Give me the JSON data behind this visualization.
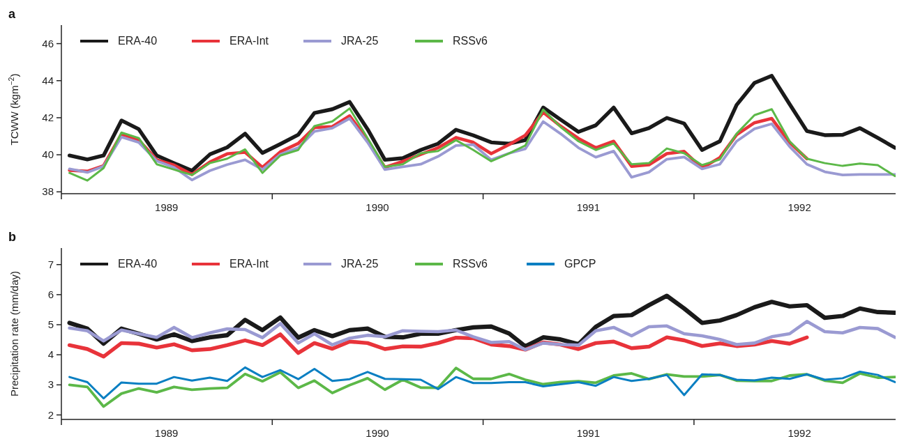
{
  "chart_data": [
    {
      "type": "line",
      "title": "a",
      "ylabel": "TCWW (kgm$^{−2}$)",
      "legend": "top left",
      "line_style": "solid",
      "marker": "none",
      "x": [
        "1989-01-15",
        "1989-02-15",
        "1989-03-15",
        "1989-04-15",
        "1989-05-15",
        "1989-06-15",
        "1989-07-15",
        "1989-08-15",
        "1989-09-15",
        "1989-10-15",
        "1989-11-15",
        "1989-12-15",
        "1990-01-15",
        "1990-02-15",
        "1990-03-15",
        "1990-04-15",
        "1990-05-15",
        "1990-06-15",
        "1990-07-15",
        "1990-08-15",
        "1990-09-15",
        "1990-10-15",
        "1990-11-15",
        "1990-12-15",
        "1991-01-15",
        "1991-02-15",
        "1991-03-15",
        "1991-04-15",
        "1991-05-15",
        "1991-06-15",
        "1991-07-15",
        "1991-08-15",
        "1991-09-15",
        "1991-10-15",
        "1991-11-15",
        "1991-12-15",
        "1992-01-15",
        "1992-02-15",
        "1992-03-15",
        "1992-04-15",
        "1992-05-15",
        "1992-06-15",
        "1992-07-15",
        "1992-08-15",
        "1992-09-15",
        "1992-10-15",
        "1992-11-15",
        "1992-12-15"
      ],
      "xlim": [
        "1989-01-01",
        "1992-12-16"
      ],
      "xticks": [
        {
          "value": "1989-01-01",
          "label": null
        },
        {
          "value": "1989-07-02",
          "label": "1989"
        },
        {
          "value": "1990-01-01",
          "label": null
        },
        {
          "value": "1990-07-02",
          "label": "1990"
        },
        {
          "value": "1991-01-01",
          "label": null
        },
        {
          "value": "1991-07-02",
          "label": "1991"
        },
        {
          "value": "1992-01-01",
          "label": null
        },
        {
          "value": "1992-07-02",
          "label": "1992"
        }
      ],
      "ylim": [
        37.9,
        47
      ],
      "yticks": [
        38,
        40,
        42,
        44,
        46
      ],
      "series": [
        {
          "name": "ERA-40",
          "color": "#1a1a1a",
          "values": [
            39.96,
            39.75,
            39.96,
            41.85,
            41.38,
            39.96,
            39.55,
            39.14,
            40.02,
            40.4,
            41.14,
            40.1,
            40.58,
            41.08,
            42.26,
            42.46,
            42.85,
            41.38,
            39.73,
            39.82,
            40.26,
            40.6,
            41.35,
            41.05,
            40.67,
            40.6,
            40.79,
            42.55,
            41.9,
            41.24,
            41.59,
            42.55,
            41.16,
            41.44,
            41.99,
            41.69,
            40.26,
            40.73,
            42.69,
            43.88,
            44.26,
            42.73,
            41.28,
            41.06,
            41.08,
            41.44,
            40.91,
            40.38
          ]
        },
        {
          "name": "ERA-Int",
          "color": "#e8333a",
          "values": [
            39.16,
            39.11,
            39.41,
            41.12,
            40.79,
            39.73,
            39.44,
            38.94,
            39.61,
            40.05,
            40.14,
            39.32,
            40.16,
            40.61,
            41.47,
            41.52,
            42.1,
            40.79,
            39.32,
            39.64,
            40.02,
            40.38,
            40.93,
            40.67,
            40.06,
            40.55,
            41.05,
            42.29,
            41.55,
            40.88,
            40.38,
            40.73,
            39.38,
            39.46,
            40.06,
            40.18,
            39.28,
            39.85,
            41.08,
            41.73,
            41.96,
            40.67,
            39.79,
            null,
            null,
            null,
            null,
            null
          ]
        },
        {
          "name": "JRA-25",
          "color": "#9a9ad2",
          "values": [
            39.24,
            39.05,
            39.38,
            40.96,
            40.67,
            39.67,
            39.32,
            38.64,
            39.14,
            39.47,
            39.73,
            39.2,
            40.02,
            40.38,
            41.26,
            41.44,
            41.96,
            40.67,
            39.2,
            39.35,
            39.49,
            39.91,
            40.5,
            40.55,
            39.73,
            40.08,
            40.32,
            41.79,
            41.14,
            40.38,
            39.87,
            40.2,
            38.79,
            39.06,
            39.76,
            39.88,
            39.24,
            39.49,
            40.73,
            41.4,
            41.67,
            40.44,
            39.49,
            39.08,
            38.91,
            38.94,
            38.94,
            38.94
          ]
        },
        {
          "name": "RSSv6",
          "color": "#5cb848",
          "values": [
            39.02,
            38.61,
            39.28,
            41.2,
            40.9,
            39.49,
            39.2,
            38.91,
            39.55,
            39.79,
            40.29,
            39.02,
            39.96,
            40.26,
            41.55,
            41.8,
            42.5,
            40.9,
            39.35,
            39.49,
            40.08,
            40.2,
            40.79,
            40.26,
            39.65,
            40.08,
            40.5,
            42.44,
            41.5,
            40.73,
            40.26,
            40.61,
            39.49,
            39.55,
            40.34,
            40.08,
            39.44,
            39.75,
            41.14,
            42.14,
            42.46,
            40.73,
            39.79,
            39.55,
            39.4,
            39.53,
            39.44,
            38.85
          ]
        }
      ]
    },
    {
      "type": "line",
      "title": "b",
      "ylabel": "Precipitation rate (mm/day)",
      "legend": "top left",
      "line_style": "solid",
      "marker": "none",
      "x": [
        "1989-01-15",
        "1989-02-15",
        "1989-03-15",
        "1989-04-15",
        "1989-05-15",
        "1989-06-15",
        "1989-07-15",
        "1989-08-15",
        "1989-09-15",
        "1989-10-15",
        "1989-11-15",
        "1989-12-15",
        "1990-01-15",
        "1990-02-15",
        "1990-03-15",
        "1990-04-15",
        "1990-05-15",
        "1990-06-15",
        "1990-07-15",
        "1990-08-15",
        "1990-09-15",
        "1990-10-15",
        "1990-11-15",
        "1990-12-15",
        "1991-01-15",
        "1991-02-15",
        "1991-03-15",
        "1991-04-15",
        "1991-05-15",
        "1991-06-15",
        "1991-07-15",
        "1991-08-15",
        "1991-09-15",
        "1991-10-15",
        "1991-11-15",
        "1991-12-15",
        "1992-01-15",
        "1992-02-15",
        "1992-03-15",
        "1992-04-15",
        "1992-05-15",
        "1992-06-15",
        "1992-07-15",
        "1992-08-15",
        "1992-09-15",
        "1992-10-15",
        "1992-11-15",
        "1992-12-15"
      ],
      "xlim": [
        "1989-01-01",
        "1992-12-16"
      ],
      "xticks": [
        {
          "value": "1989-01-01",
          "label": null
        },
        {
          "value": "1989-07-02",
          "label": "1989"
        },
        {
          "value": "1990-01-01",
          "label": null
        },
        {
          "value": "1990-07-02",
          "label": "1990"
        },
        {
          "value": "1991-01-01",
          "label": null
        },
        {
          "value": "1991-07-02",
          "label": "1991"
        },
        {
          "value": "1992-01-01",
          "label": null
        },
        {
          "value": "1992-07-02",
          "label": "1992"
        }
      ],
      "ylim": [
        1.85,
        7.55
      ],
      "yticks": [
        2,
        3,
        4,
        5,
        6,
        7
      ],
      "series": [
        {
          "name": "ERA-40",
          "color": "#1a1a1a",
          "values": [
            5.06,
            4.87,
            4.37,
            4.87,
            4.7,
            4.51,
            4.68,
            4.46,
            4.58,
            4.65,
            5.16,
            4.82,
            5.24,
            4.57,
            4.82,
            4.62,
            4.82,
            4.87,
            4.6,
            4.58,
            4.7,
            4.7,
            4.82,
            4.91,
            4.94,
            4.71,
            4.28,
            4.58,
            4.51,
            4.35,
            4.93,
            5.29,
            5.32,
            5.65,
            5.96,
            5.54,
            5.06,
            5.14,
            5.32,
            5.58,
            5.76,
            5.61,
            5.65,
            5.23,
            5.29,
            5.54,
            5.42,
            5.4
          ]
        },
        {
          "name": "ERA-Int",
          "color": "#e8333a",
          "values": [
            4.32,
            4.19,
            3.94,
            4.39,
            4.37,
            4.24,
            4.35,
            4.15,
            4.19,
            4.32,
            4.48,
            4.32,
            4.68,
            4.06,
            4.39,
            4.2,
            4.44,
            4.39,
            4.19,
            4.28,
            4.27,
            4.39,
            4.57,
            4.55,
            4.34,
            4.29,
            4.17,
            4.41,
            4.34,
            4.19,
            4.39,
            4.44,
            4.22,
            4.27,
            4.58,
            4.48,
            4.29,
            4.38,
            4.29,
            4.34,
            4.46,
            4.37,
            4.58,
            null,
            null,
            null,
            null,
            null
          ]
        },
        {
          "name": "JRA-25",
          "color": "#9a9ad2",
          "values": [
            4.89,
            4.8,
            4.46,
            4.82,
            4.7,
            4.58,
            4.91,
            4.57,
            4.73,
            4.86,
            4.84,
            4.57,
            5.04,
            4.39,
            4.7,
            4.33,
            4.55,
            4.65,
            4.6,
            4.8,
            4.78,
            4.77,
            4.82,
            4.6,
            4.41,
            4.44,
            4.17,
            4.39,
            4.34,
            4.32,
            4.8,
            4.91,
            4.63,
            4.93,
            4.96,
            4.7,
            4.63,
            4.51,
            4.34,
            4.39,
            4.6,
            4.7,
            5.11,
            4.77,
            4.73,
            4.91,
            4.87,
            4.58
          ]
        },
        {
          "name": "RSSv6",
          "color": "#5cb848",
          "values": [
            3.0,
            2.93,
            2.28,
            2.71,
            2.88,
            2.75,
            2.93,
            2.84,
            2.88,
            2.9,
            3.36,
            3.12,
            3.42,
            2.9,
            3.14,
            2.73,
            2.99,
            3.22,
            2.84,
            3.17,
            2.91,
            2.9,
            3.56,
            3.2,
            3.2,
            3.36,
            3.17,
            3.02,
            3.09,
            3.12,
            3.07,
            3.31,
            3.38,
            3.19,
            3.35,
            3.28,
            3.28,
            3.33,
            3.14,
            3.13,
            3.13,
            3.31,
            3.35,
            3.14,
            3.07,
            3.38,
            3.24,
            3.26
          ]
        },
        {
          "name": "GPCP",
          "color": "#0a7fc2",
          "values": [
            3.26,
            3.09,
            2.55,
            3.08,
            3.04,
            3.04,
            3.26,
            3.14,
            3.24,
            3.13,
            3.58,
            3.26,
            3.49,
            3.19,
            3.53,
            3.13,
            3.19,
            3.43,
            3.2,
            3.19,
            3.17,
            2.86,
            3.26,
            3.06,
            3.06,
            3.09,
            3.09,
            2.95,
            3.02,
            3.09,
            2.97,
            3.26,
            3.13,
            3.2,
            3.33,
            2.66,
            3.35,
            3.33,
            3.17,
            3.15,
            3.24,
            3.2,
            3.35,
            3.17,
            3.22,
            3.44,
            3.33,
            3.09
          ]
        }
      ]
    }
  ]
}
